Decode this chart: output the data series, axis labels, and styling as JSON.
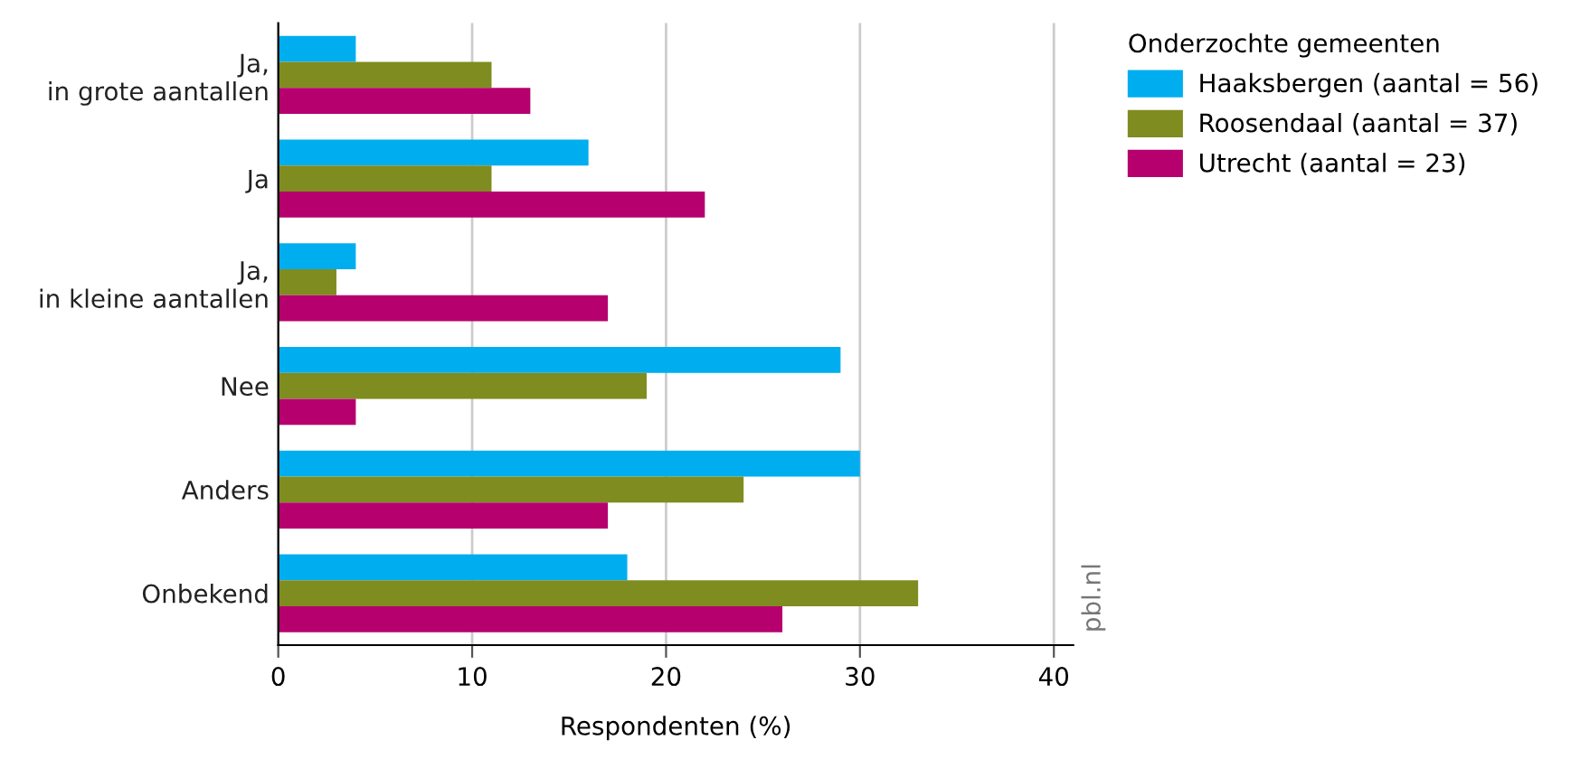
{
  "chart_data": {
    "type": "bar",
    "orientation": "horizontal",
    "xlabel": "Respondenten (%)",
    "legend_title": "Onderzochte gemeenten",
    "legend": "right",
    "categories": [
      "Ja,\nin grote aantallen",
      "Ja",
      "Ja,\nin kleine aantallen",
      "Nee",
      "Anders",
      "Onbekend"
    ],
    "series": [
      {
        "name": "Haaksbergen (aantal = 56)",
        "color": "#00aeef",
        "values": [
          4,
          16,
          4,
          29,
          30,
          18
        ]
      },
      {
        "name": "Roosendaal (aantal = 37)",
        "color": "#7f8c1f",
        "values": [
          11,
          11,
          3,
          19,
          24,
          33
        ]
      },
      {
        "name": "Utrecht (aantal = 23)",
        "color": "#b5006e",
        "values": [
          13,
          22,
          17,
          4,
          17,
          26
        ]
      }
    ],
    "xlim": [
      0,
      41
    ],
    "xticks": [
      0,
      10,
      20,
      30,
      40
    ],
    "grid": "x",
    "annotations": [
      "pbl.nl"
    ]
  }
}
